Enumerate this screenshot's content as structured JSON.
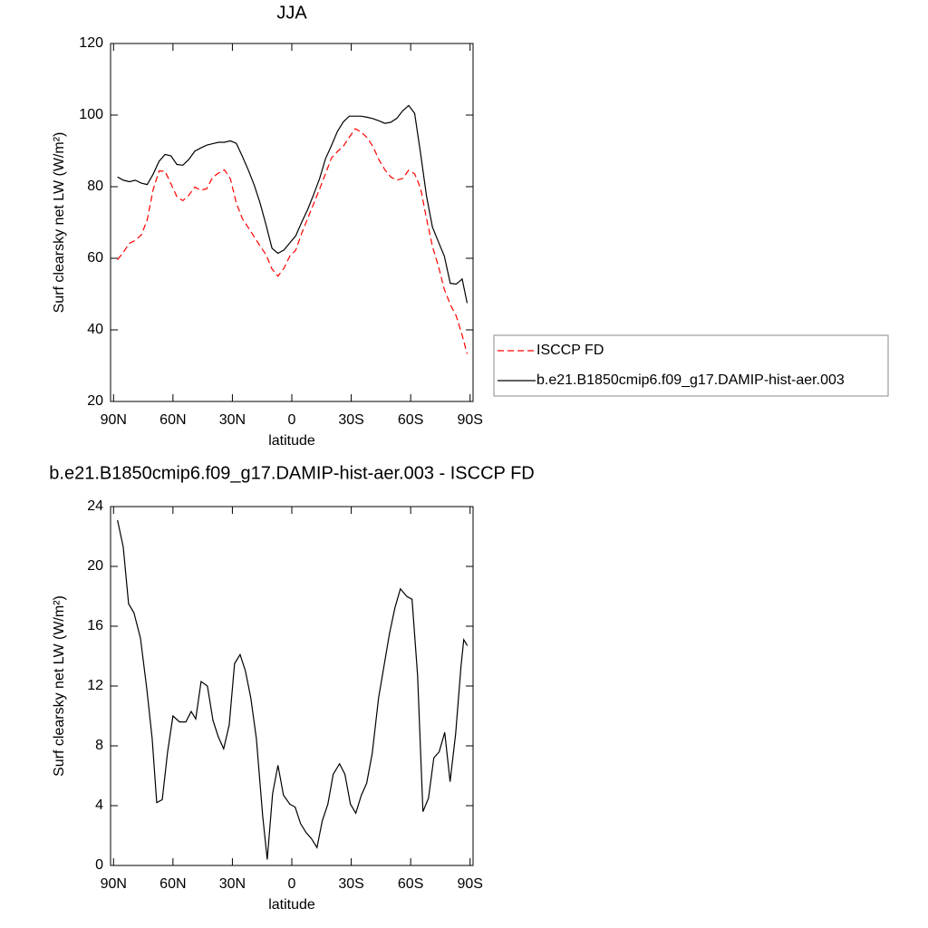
{
  "chart_data": [
    {
      "type": "line",
      "title": "JJA",
      "x_label": "latitude",
      "y_label": "Surf clearsky net LW (W/m²)",
      "x": [
        88,
        85,
        82,
        79,
        76,
        73,
        70,
        67,
        64,
        61,
        58,
        55,
        52,
        49,
        46,
        43,
        40,
        37,
        34,
        31,
        28,
        25,
        22,
        19,
        16,
        13,
        10,
        7,
        4,
        1,
        -2,
        -5,
        -8,
        -11,
        -14,
        -17,
        -20,
        -23,
        -26,
        -29,
        -32,
        -35,
        -38,
        -41,
        -44,
        -47,
        -50,
        -53,
        -56,
        -59,
        -62,
        -65,
        -68,
        -71,
        -74,
        -77,
        -80,
        -83,
        -86,
        -88.5
      ],
      "series": [
        {
          "name": "ISCCP FD",
          "color": "#ff0000",
          "line_style": "dashed",
          "values": [
            59.6,
            61.7,
            64.2,
            65,
            66.5,
            70.7,
            79.2,
            84.4,
            84.3,
            80.8,
            77.2,
            76.1,
            77.6,
            79.9,
            79,
            79.4,
            82.6,
            83.8,
            84.7,
            82.2,
            75.4,
            71.1,
            68.6,
            66,
            63.4,
            61,
            57,
            55,
            57.2,
            60.6,
            62.3,
            67,
            71.1,
            75.2,
            79.3,
            83.6,
            88,
            89.8,
            91.3,
            93.8,
            96.2,
            95.3,
            93.7,
            91.2,
            87.5,
            84.7,
            82.7,
            81.8,
            82.3,
            84.6,
            83.6,
            79.6,
            71.1,
            63.3,
            57.8,
            51.3,
            47.1,
            43.9,
            38.5,
            33.3
          ]
        },
        {
          "name": "b.e21.B1850cmip6.f09_g17.DAMIP-hist-aer.003",
          "color": "#000000",
          "line_style": "solid",
          "values": [
            82.7,
            81.8,
            81.4,
            81.8,
            81,
            80.6,
            83.5,
            87.1,
            89,
            88.6,
            86.2,
            86,
            87.6,
            89.9,
            90.8,
            91.6,
            92,
            92.4,
            92.4,
            92.8,
            92.1,
            88.5,
            84.7,
            80.5,
            75.4,
            69.3,
            62.8,
            61.4,
            62.3,
            64.3,
            66.3,
            70.1,
            73.6,
            77.8,
            82.2,
            87.8,
            91.5,
            95.4,
            98.1,
            99.7,
            99.7,
            99.7,
            99.4,
            99,
            98.4,
            97.7,
            98,
            99.1,
            101.2,
            102.7,
            100.5,
            89.3,
            77.4,
            68.7,
            64.6,
            60.6,
            53,
            52.8,
            54.2,
            47.5
          ]
        }
      ],
      "xlim": [
        91.5,
        -91.5
      ],
      "xticks": [
        {
          "value": 90,
          "label": "90N"
        },
        {
          "value": 60,
          "label": "60N"
        },
        {
          "value": 30,
          "label": "30N"
        },
        0,
        {
          "value": -30,
          "label": "30S"
        },
        {
          "value": -60,
          "label": "60S"
        },
        {
          "value": -90,
          "label": "90S"
        }
      ],
      "ylim": [
        20,
        120
      ],
      "yticks": [
        20,
        40,
        60,
        80,
        100,
        120
      ],
      "legend": "right"
    },
    {
      "type": "line",
      "title": "b.e21.B1850cmip6.f09_g17.DAMIP-hist-aer.003 - ISCCP FD",
      "x_label": "latitude",
      "y_label": "Surf clearsky net LW (W/m²)",
      "x": [
        88,
        85.1,
        82.4,
        79.7,
        76.4,
        73.2,
        70.5,
        68.2,
        65.4,
        62.7,
        60,
        56.7,
        53.5,
        50.8,
        48.5,
        45.8,
        42.6,
        39.8,
        37.1,
        34.4,
        31.6,
        28.9,
        26.1,
        23.4,
        20.7,
        17.9,
        14.7,
        12.4,
        9.7,
        7,
        4.2,
        1,
        -1.7,
        -4.4,
        -7.2,
        -9.9,
        -12.7,
        -15.4,
        -18.2,
        -20.9,
        -24.1,
        -26.8,
        -29.6,
        -32.3,
        -35.1,
        -37.8,
        -40.6,
        -43.8,
        -49.3,
        -52,
        -54.8,
        -58,
        -60.7,
        -63.5,
        -66.2,
        -69,
        -71.7,
        -74.4,
        -77.2,
        -79.9,
        -82.7,
        -85.4,
        -86.8,
        -88.6
      ],
      "series": [
        {
          "color": "#000000",
          "line_style": "solid",
          "values": [
            23.1,
            21.3,
            17.5,
            16.9,
            15.2,
            11.8,
            8.5,
            4.2,
            4.4,
            7.6,
            10,
            9.6,
            9.6,
            10.3,
            9.8,
            12.3,
            12,
            9.7,
            8.6,
            7.8,
            9.4,
            13.5,
            14.1,
            13,
            11.2,
            8.5,
            3.3,
            0.4,
            4.8,
            6.7,
            4.7,
            4.1,
            3.9,
            2.8,
            2.2,
            1.8,
            1.2,
            3,
            4.1,
            6.1,
            6.8,
            6.1,
            4.1,
            3.5,
            4.7,
            5.5,
            7.5,
            11.2,
            15.5,
            17.2,
            18.5,
            18,
            17.8,
            12.7,
            3.6,
            4.5,
            7.2,
            7.6,
            8.9,
            5.6,
            8.8,
            13.3,
            15.1,
            14.7
          ]
        }
      ],
      "xlim": [
        91.5,
        -91.5
      ],
      "xticks": [
        {
          "value": 90,
          "label": "90N"
        },
        {
          "value": 60,
          "label": "60N"
        },
        {
          "value": 30,
          "label": "30N"
        },
        0,
        {
          "value": -30,
          "label": "30S"
        },
        {
          "value": -60,
          "label": "60S"
        },
        {
          "value": -90,
          "label": "90S"
        }
      ],
      "ylim": [
        0,
        24
      ],
      "yticks": [
        0,
        4,
        8,
        12,
        16,
        20,
        24
      ]
    }
  ]
}
